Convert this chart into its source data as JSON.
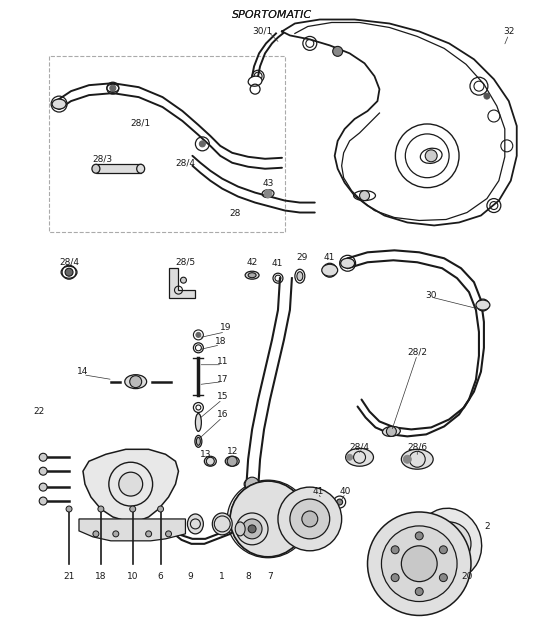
{
  "title": "SPORTOMATIC",
  "bg_color": "#ffffff",
  "lc": "#1a1a1a",
  "figsize": [
    5.45,
    6.28
  ],
  "dpi": 100,
  "lfs": 6.5
}
